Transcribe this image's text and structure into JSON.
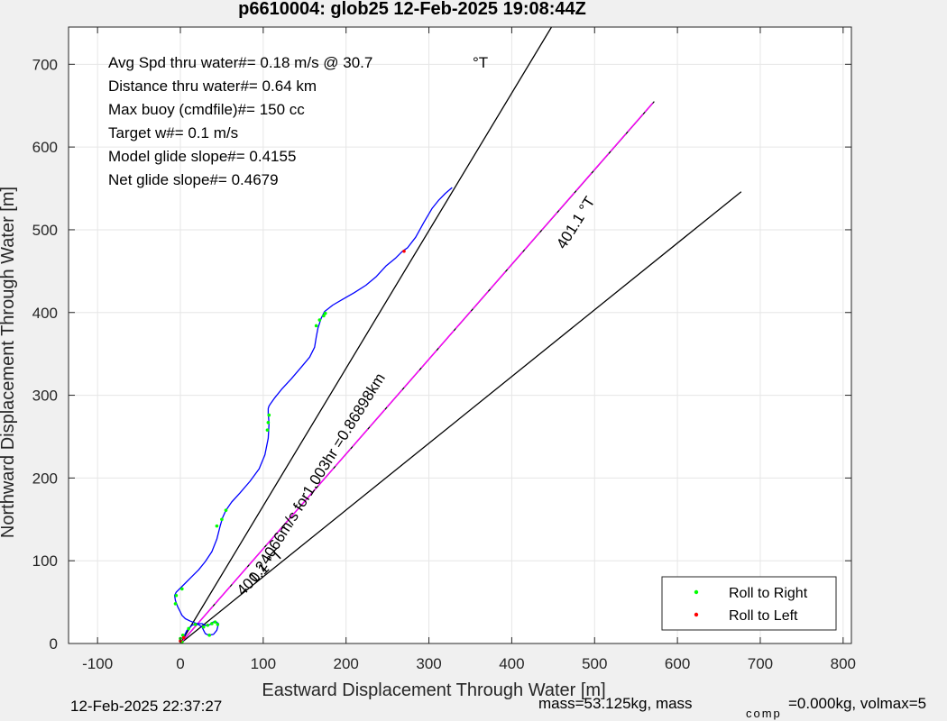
{
  "chart_data": {
    "type": "line",
    "title": "p6610004: glob25 12-Feb-2025 19:08:44Z",
    "xlabel": "Eastward Displacement Through Water [m]",
    "ylabel": "Northward Displacement Through Water [m]",
    "xlim": [
      -135,
      810
    ],
    "ylim": [
      0,
      745
    ],
    "xticks": [
      -100,
      0,
      100,
      200,
      300,
      400,
      500,
      600,
      700,
      800
    ],
    "yticks": [
      0,
      100,
      200,
      300,
      400,
      500,
      600,
      700
    ],
    "grid": true,
    "legend_position": "bottom-right",
    "stats": [
      "Avg Spd thru water#=  0.18 m/s @  30.7",
      "Distance thru water#=  0.64 km",
      "Max buoy (cmdfile)#= 150 cc",
      "Target w#= 0.1 m/s",
      "Model glide slope#= 0.4155",
      "Net glide slope#= 0.4679"
    ],
    "degree_unit": "°T",
    "heading_label_upper": "401.1  °T",
    "heading_label_lower": "401.1  °T",
    "speed_label": "0.24066m/s for1.003hr =0.86898km",
    "track": {
      "x": [
        0,
        4,
        6,
        8,
        10,
        14,
        20,
        26,
        30,
        33,
        36,
        38,
        42,
        46,
        44,
        40,
        34,
        30,
        28,
        26,
        20,
        12,
        6,
        2,
        0,
        -3,
        -6,
        -7,
        -5,
        0,
        6,
        14,
        22,
        30,
        38,
        44,
        48,
        51,
        55,
        62,
        72,
        84,
        95,
        102,
        106,
        107,
        106,
        106,
        107,
        109,
        114,
        122,
        134,
        146,
        156,
        162,
        164,
        166,
        170,
        174,
        184,
        196,
        210,
        224,
        236,
        248,
        260,
        268,
        274,
        284,
        294,
        304,
        312,
        320,
        328
      ],
      "y": [
        5,
        8,
        12,
        16,
        18,
        22,
        24,
        24,
        22,
        22,
        23,
        25,
        27,
        24,
        16,
        11,
        10,
        12,
        16,
        20,
        24,
        27,
        30,
        34,
        38,
        44,
        52,
        58,
        62,
        67,
        73,
        81,
        89,
        99,
        111,
        126,
        142,
        152,
        161,
        171,
        182,
        196,
        211,
        228,
        248,
        266,
        278,
        284,
        287,
        290,
        297,
        307,
        320,
        334,
        346,
        358,
        370,
        381,
        393,
        401,
        409,
        416,
        424,
        433,
        443,
        456,
        466,
        474,
        478,
        491,
        509,
        526,
        536,
        544,
        551
      ]
    },
    "roll_right": {
      "x": [
        0,
        3,
        10,
        18,
        28,
        33,
        38,
        42,
        45,
        35,
        -6,
        -5,
        2,
        44,
        50,
        55,
        105,
        106,
        107,
        164,
        168,
        173,
        175,
        2
      ],
      "y": [
        6,
        10,
        18,
        23,
        20,
        22,
        24,
        26,
        23,
        10,
        48,
        58,
        66,
        142,
        150,
        161,
        258,
        267,
        276,
        384,
        391,
        396,
        399,
        2
      ]
    },
    "roll_left": {
      "x": [
        270,
        0,
        4
      ],
      "y": [
        474,
        3,
        7
      ]
    },
    "lines": [
      {
        "name": "heading",
        "x": [
          0,
          448
        ],
        "y": [
          0,
          745
        ],
        "color": "#000000"
      },
      {
        "name": "net-track",
        "x": [
          0,
          572
        ],
        "y": [
          0,
          655
        ],
        "color": "#000000"
      },
      {
        "name": "lower-bound",
        "x": [
          0,
          677
        ],
        "y": [
          0,
          546
        ],
        "color": "#000000"
      },
      {
        "name": "model-glide",
        "x": [
          0,
          570
        ],
        "y": [
          0,
          653
        ],
        "color": "#ff00ff"
      }
    ],
    "series": [
      {
        "name": "Roll to Right",
        "color": "#00ff00"
      },
      {
        "name": "Roll to Left",
        "color": "#ff0000"
      }
    ]
  },
  "footer": {
    "timestamp": "12-Feb-2025 22:37:27",
    "mass_text": "mass=53.125kg, mass",
    "comp_subscript": "comp",
    "mass_tail": "=0.000kg, volmax=5"
  },
  "colors": {
    "track": "#0000ff",
    "dots_right": "#00ff00",
    "dots_left": "#ff0000",
    "axes_bg": "#ffffff",
    "figure_bg": "#f0f0f0",
    "grid": "#e6e6e6"
  }
}
